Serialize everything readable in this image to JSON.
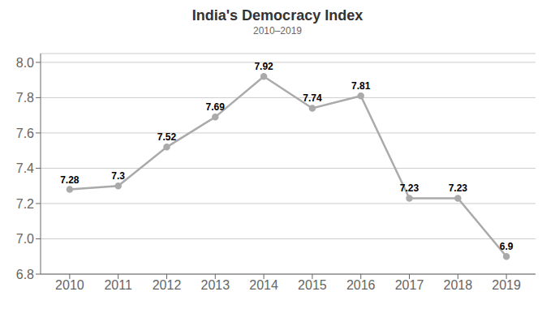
{
  "chart_data": {
    "type": "line",
    "title": "India's Democracy Index",
    "subtitle": "2010–2019",
    "x": [
      2010,
      2011,
      2012,
      2013,
      2014,
      2015,
      2016,
      2017,
      2018,
      2019
    ],
    "values": [
      7.28,
      7.3,
      7.52,
      7.69,
      7.92,
      7.74,
      7.81,
      7.23,
      7.23,
      6.9
    ],
    "color": "#aaaaaa",
    "marker": "circle",
    "xlim": [
      2009.4,
      2019.6
    ],
    "xticks": [
      2010,
      2011,
      2012,
      2013,
      2014,
      2015,
      2016,
      2017,
      2018,
      2019
    ],
    "ylim": [
      6.8,
      8.05
    ],
    "yticks": [
      6.8,
      {
        "value": 7.0,
        "label": "7.0"
      },
      7.2,
      7.4,
      7.6,
      7.8,
      {
        "value": 8.0,
        "label": "8.0"
      }
    ],
    "grid": "y",
    "data_labels": true
  }
}
